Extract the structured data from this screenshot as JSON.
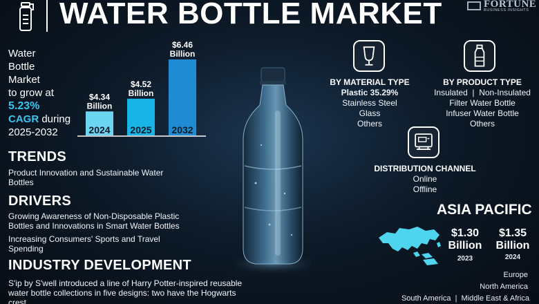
{
  "header": {
    "title": "WATER BOTTLE MARKET",
    "brand_name": "FORTUNE",
    "brand_sub": "BUSINESS INSIGHTS",
    "logo_icon": "water-bottle-icon",
    "brand_icon": "fortune-logo-icon"
  },
  "growth": {
    "line1": "Water",
    "line2": "Bottle",
    "line3": "Market",
    "line4": "to grow at",
    "cagr_value": "5.23%",
    "cagr_label": "CAGR",
    "during": " during",
    "period": "2025-2032"
  },
  "chart_data": {
    "type": "bar",
    "categories": [
      "2024",
      "2025",
      "2032"
    ],
    "values": [
      4.34,
      4.52,
      6.46
    ],
    "value_labels": [
      "$4.34 Billion",
      "$4.52 Billion",
      "$6.46 Billion"
    ],
    "value_top": [
      "$4.34",
      "$4.52",
      "$6.46"
    ],
    "value_unit": "Billion",
    "title": "",
    "xlabel": "",
    "ylabel": "",
    "ylim": [
      0,
      7
    ],
    "grid": false,
    "legend": "none",
    "colors": [
      "#6cd6f2",
      "#18b4e6",
      "#1e8bd3"
    ]
  },
  "trends": {
    "heading": "TRENDS",
    "text": "Product Innovation and Sustainable Water Bottles"
  },
  "drivers": {
    "heading": "DRIVERS",
    "text1": "Growing Awareness of Non-Disposable Plastic Bottles and Innovations in Smart Water Bottles",
    "text2": "Increasing Consumers' Sports and Travel Spending"
  },
  "industry": {
    "heading": "INDUSTRY DEVELOPMENT",
    "text": "S'ip by S'well introduced a line of Harry Potter-inspired reusable water bottle collections in five designs: two have the Hogwarts crest"
  },
  "segments": {
    "material": {
      "icon": "glass-icon",
      "heading": "BY MATERIAL TYPE",
      "lead": "Plastic 35.29%",
      "items": [
        "Stainless Steel",
        "Glass",
        "Others"
      ]
    },
    "product": {
      "icon": "bottle-icon",
      "heading": "BY PRODUCT TYPE",
      "line1": "Insulated  |  Non-Insulated",
      "items": [
        "Filter Water Bottle",
        "Infuser Water Bottle",
        "Others"
      ]
    },
    "channel": {
      "icon": "store-icon",
      "heading": "DISTRIBUTION CHANNEL",
      "items": [
        "Online",
        "Offline"
      ]
    }
  },
  "asia_pacific": {
    "title": "ASIA PACIFIC",
    "map_icon": "asia-pacific-map-icon",
    "value1": "$1.30",
    "unit1": "Billion",
    "year1": "2023",
    "value2": "$1.35",
    "unit2": "Billion",
    "year2": "2024"
  },
  "regions": {
    "europe": "Europe",
    "north_america": "North America",
    "bottom": "South America  |  Middle East & Africa"
  },
  "colors": {
    "accent": "#39c5f0",
    "map": "#4fd4ee"
  }
}
